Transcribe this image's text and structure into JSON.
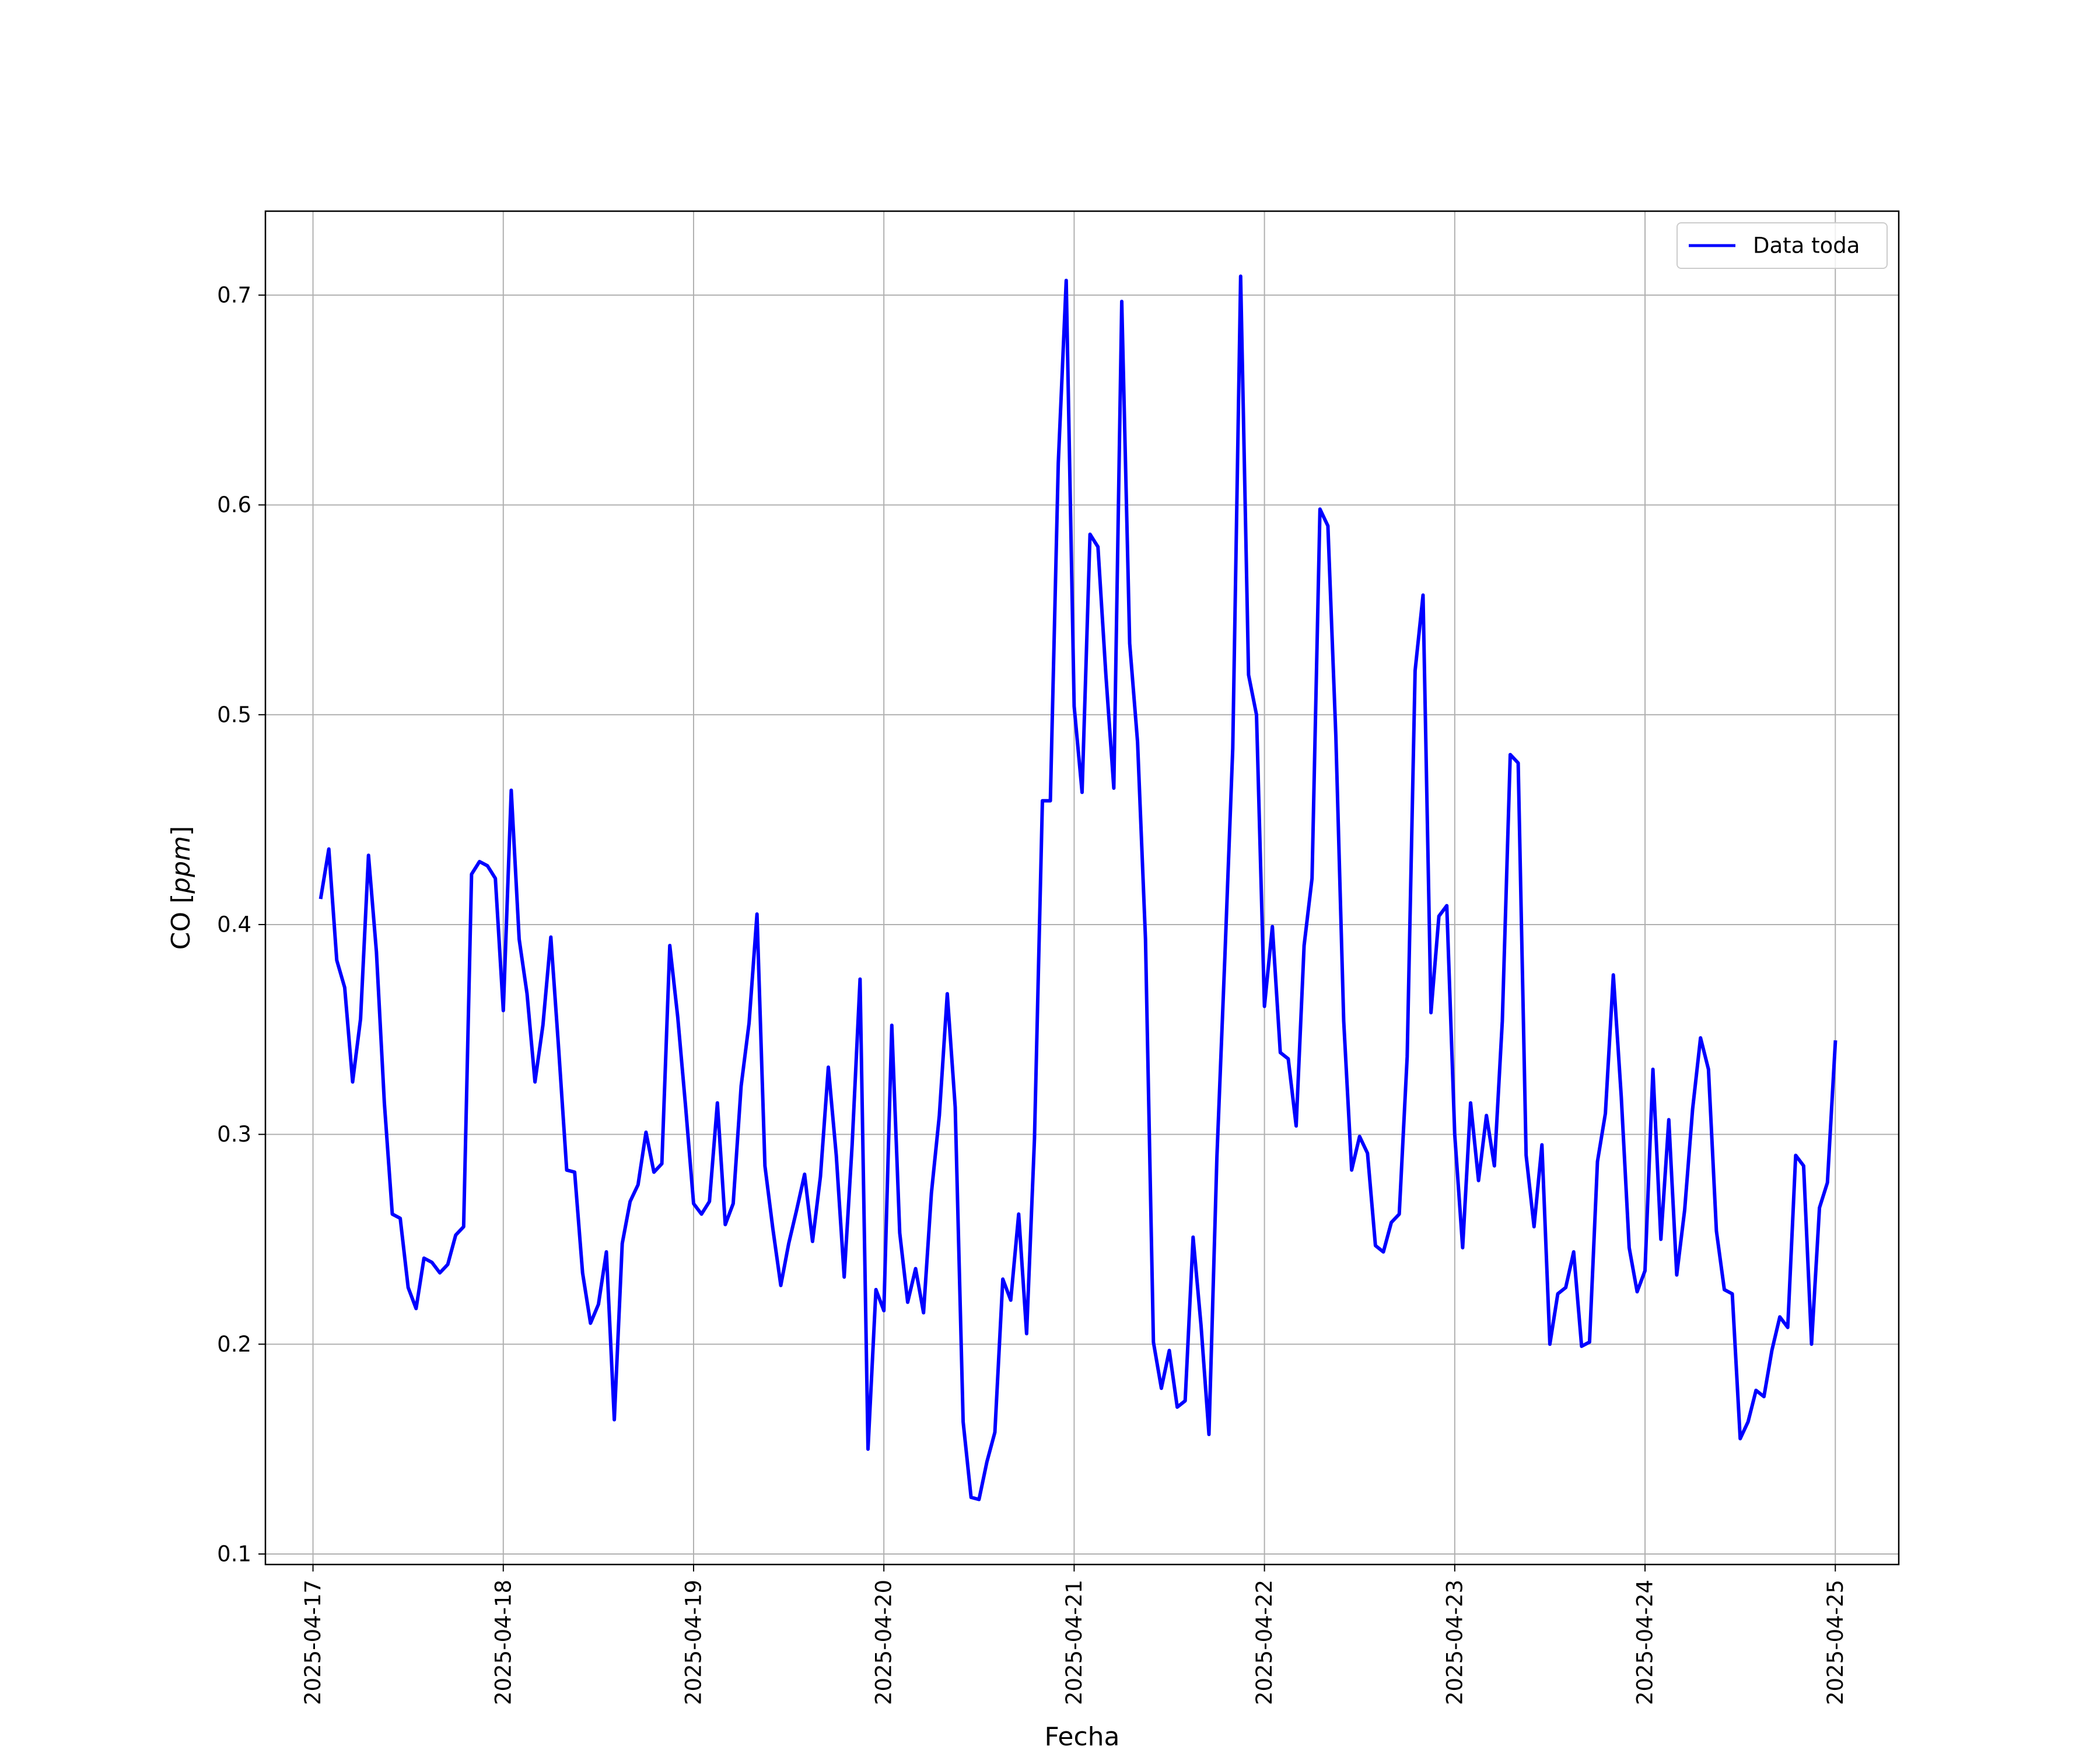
{
  "chart_data": {
    "type": "line",
    "title": "",
    "xlabel": "Fecha",
    "ylabel_main": "CO ",
    "ylabel_unit": "ppm",
    "xlim": [
      "2025-04-16 18:00",
      "2025-04-25 08:00"
    ],
    "ylim": [
      0.095,
      0.74
    ],
    "x_ticks": [
      "2025-04-17",
      "2025-04-18",
      "2025-04-19",
      "2025-04-20",
      "2025-04-21",
      "2025-04-22",
      "2025-04-23",
      "2025-04-24",
      "2025-04-25"
    ],
    "y_ticks": [
      "0.1",
      "0.2",
      "0.3",
      "0.4",
      "0.5",
      "0.6",
      "0.7"
    ],
    "grid": true,
    "legend": {
      "position": "top-right",
      "entries": [
        "Data toda"
      ]
    },
    "series": [
      {
        "name": "Data toda",
        "color": "#0000ff",
        "x": [
          "2025-04-17 01:00",
          "2025-04-17 02:00",
          "2025-04-17 03:00",
          "2025-04-17 04:00",
          "2025-04-17 05:00",
          "2025-04-17 06:00",
          "2025-04-17 07:00",
          "2025-04-17 08:00",
          "2025-04-17 09:00",
          "2025-04-17 10:00",
          "2025-04-17 11:00",
          "2025-04-17 12:00",
          "2025-04-17 13:00",
          "2025-04-17 14:00",
          "2025-04-17 15:00",
          "2025-04-17 16:00",
          "2025-04-17 17:00",
          "2025-04-17 18:00",
          "2025-04-17 19:00",
          "2025-04-17 20:00",
          "2025-04-17 21:00",
          "2025-04-17 22:00",
          "2025-04-17 23:00",
          "2025-04-18 00:00",
          "2025-04-18 01:00",
          "2025-04-18 02:00",
          "2025-04-18 03:00",
          "2025-04-18 04:00",
          "2025-04-18 05:00",
          "2025-04-18 06:00",
          "2025-04-18 07:00",
          "2025-04-18 08:00",
          "2025-04-18 09:00",
          "2025-04-18 10:00",
          "2025-04-18 11:00",
          "2025-04-18 12:00",
          "2025-04-18 13:00",
          "2025-04-18 14:00",
          "2025-04-18 15:00",
          "2025-04-18 16:00",
          "2025-04-18 17:00",
          "2025-04-18 18:00",
          "2025-04-18 19:00",
          "2025-04-18 20:00",
          "2025-04-18 21:00",
          "2025-04-18 22:00",
          "2025-04-18 23:00",
          "2025-04-19 00:00",
          "2025-04-19 01:00",
          "2025-04-19 02:00",
          "2025-04-19 03:00",
          "2025-04-19 04:00",
          "2025-04-19 05:00",
          "2025-04-19 06:00",
          "2025-04-19 07:00",
          "2025-04-19 08:00",
          "2025-04-19 09:00",
          "2025-04-19 10:00",
          "2025-04-19 11:00",
          "2025-04-19 12:00",
          "2025-04-19 13:00",
          "2025-04-19 14:00",
          "2025-04-19 15:00",
          "2025-04-19 16:00",
          "2025-04-19 17:00",
          "2025-04-19 18:00",
          "2025-04-19 19:00",
          "2025-04-19 20:00",
          "2025-04-19 21:00",
          "2025-04-19 22:00",
          "2025-04-19 23:00",
          "2025-04-20 00:00",
          "2025-04-20 01:00",
          "2025-04-20 02:00",
          "2025-04-20 03:00",
          "2025-04-20 04:00",
          "2025-04-20 05:00",
          "2025-04-20 06:00",
          "2025-04-20 07:00",
          "2025-04-20 08:00",
          "2025-04-20 09:00",
          "2025-04-20 10:00",
          "2025-04-20 11:00",
          "2025-04-20 12:00",
          "2025-04-20 13:00",
          "2025-04-20 14:00",
          "2025-04-20 15:00",
          "2025-04-20 16:00",
          "2025-04-20 17:00",
          "2025-04-20 18:00",
          "2025-04-20 19:00",
          "2025-04-20 20:00",
          "2025-04-20 21:00",
          "2025-04-20 22:00",
          "2025-04-20 23:00",
          "2025-04-21 00:00",
          "2025-04-21 01:00",
          "2025-04-21 02:00",
          "2025-04-21 03:00",
          "2025-04-21 04:00",
          "2025-04-21 05:00",
          "2025-04-21 06:00",
          "2025-04-21 07:00",
          "2025-04-21 08:00",
          "2025-04-21 09:00",
          "2025-04-21 10:00",
          "2025-04-21 11:00",
          "2025-04-21 12:00",
          "2025-04-21 13:00",
          "2025-04-21 14:00",
          "2025-04-21 15:00",
          "2025-04-21 16:00",
          "2025-04-21 17:00",
          "2025-04-21 18:00",
          "2025-04-21 19:00",
          "2025-04-21 20:00",
          "2025-04-21 21:00",
          "2025-04-21 22:00",
          "2025-04-21 23:00",
          "2025-04-22 00:00",
          "2025-04-22 01:00",
          "2025-04-22 02:00",
          "2025-04-22 03:00",
          "2025-04-22 04:00",
          "2025-04-22 05:00",
          "2025-04-22 06:00",
          "2025-04-22 07:00",
          "2025-04-22 08:00",
          "2025-04-22 09:00",
          "2025-04-22 10:00",
          "2025-04-22 11:00",
          "2025-04-22 12:00",
          "2025-04-22 13:00",
          "2025-04-22 14:00",
          "2025-04-22 15:00",
          "2025-04-22 16:00",
          "2025-04-22 17:00",
          "2025-04-22 18:00",
          "2025-04-22 19:00",
          "2025-04-22 20:00",
          "2025-04-22 21:00",
          "2025-04-22 22:00",
          "2025-04-22 23:00",
          "2025-04-23 00:00",
          "2025-04-23 01:00",
          "2025-04-23 02:00",
          "2025-04-23 03:00",
          "2025-04-23 04:00",
          "2025-04-23 05:00",
          "2025-04-23 06:00",
          "2025-04-23 07:00",
          "2025-04-23 08:00",
          "2025-04-23 09:00",
          "2025-04-23 10:00",
          "2025-04-23 11:00",
          "2025-04-23 12:00",
          "2025-04-23 13:00",
          "2025-04-23 14:00",
          "2025-04-23 15:00",
          "2025-04-23 16:00",
          "2025-04-23 17:00",
          "2025-04-23 18:00",
          "2025-04-23 19:00",
          "2025-04-23 20:00",
          "2025-04-23 21:00",
          "2025-04-23 22:00",
          "2025-04-23 23:00",
          "2025-04-24 00:00",
          "2025-04-24 01:00",
          "2025-04-24 02:00",
          "2025-04-24 03:00",
          "2025-04-24 04:00",
          "2025-04-24 05:00",
          "2025-04-24 06:00",
          "2025-04-24 07:00",
          "2025-04-24 08:00",
          "2025-04-24 09:00",
          "2025-04-24 10:00",
          "2025-04-24 11:00",
          "2025-04-24 12:00",
          "2025-04-24 13:00",
          "2025-04-24 14:00",
          "2025-04-24 15:00",
          "2025-04-24 16:00",
          "2025-04-24 17:00",
          "2025-04-24 18:00",
          "2025-04-24 19:00",
          "2025-04-24 20:00",
          "2025-04-24 21:00",
          "2025-04-24 22:00",
          "2025-04-24 23:00",
          "2025-04-25 00:00"
        ],
        "values": [
          0.413,
          0.436,
          0.383,
          0.37,
          0.325,
          0.355,
          0.433,
          0.387,
          0.315,
          0.262,
          0.26,
          0.227,
          0.217,
          0.241,
          0.239,
          0.234,
          0.238,
          0.252,
          0.256,
          0.424,
          0.43,
          0.428,
          0.422,
          0.359,
          0.464,
          0.393,
          0.367,
          0.325,
          0.352,
          0.394,
          0.34,
          0.283,
          0.282,
          0.234,
          0.21,
          0.219,
          0.244,
          0.164,
          0.248,
          0.268,
          0.276,
          0.301,
          0.282,
          0.286,
          0.39,
          0.356,
          0.313,
          0.267,
          0.262,
          0.268,
          0.315,
          0.257,
          0.267,
          0.323,
          0.353,
          0.405,
          0.285,
          0.255,
          0.228,
          0.248,
          0.264,
          0.281,
          0.249,
          0.28,
          0.332,
          0.29,
          0.232,
          0.295,
          0.374,
          0.15,
          0.226,
          0.216,
          0.352,
          0.253,
          0.22,
          0.236,
          0.215,
          0.272,
          0.309,
          0.367,
          0.313,
          0.163,
          0.127,
          0.126,
          0.144,
          0.158,
          0.231,
          0.221,
          0.262,
          0.205,
          0.298,
          0.459,
          0.459,
          0.62,
          0.707,
          0.504,
          0.463,
          0.586,
          0.58,
          0.519,
          0.465,
          0.697,
          0.534,
          0.487,
          0.393,
          0.201,
          0.179,
          0.197,
          0.17,
          0.173,
          0.251,
          0.209,
          0.157,
          0.289,
          0.384,
          0.484,
          0.709,
          0.519,
          0.5,
          0.361,
          0.399,
          0.339,
          0.336,
          0.304,
          0.39,
          0.422,
          0.598,
          0.59,
          0.49,
          0.354,
          0.283,
          0.299,
          0.291,
          0.247,
          0.244,
          0.258,
          0.262,
          0.337,
          0.521,
          0.557,
          0.358,
          0.404,
          0.409,
          0.3,
          0.246,
          0.315,
          0.278,
          0.309,
          0.285,
          0.354,
          0.481,
          0.477,
          0.29,
          0.256,
          0.295,
          0.2,
          0.224,
          0.227,
          0.244,
          0.199,
          0.201,
          0.287,
          0.31,
          0.376,
          0.318,
          0.246,
          0.225,
          0.235,
          0.331,
          0.25,
          0.307,
          0.233,
          0.264,
          0.312,
          0.346,
          0.331,
          0.254,
          0.226,
          0.224,
          0.155,
          0.163,
          0.178,
          0.175,
          0.197,
          0.213,
          0.208,
          0.29,
          0.285,
          0.2,
          0.265,
          0.277,
          0.344
        ]
      }
    ]
  }
}
